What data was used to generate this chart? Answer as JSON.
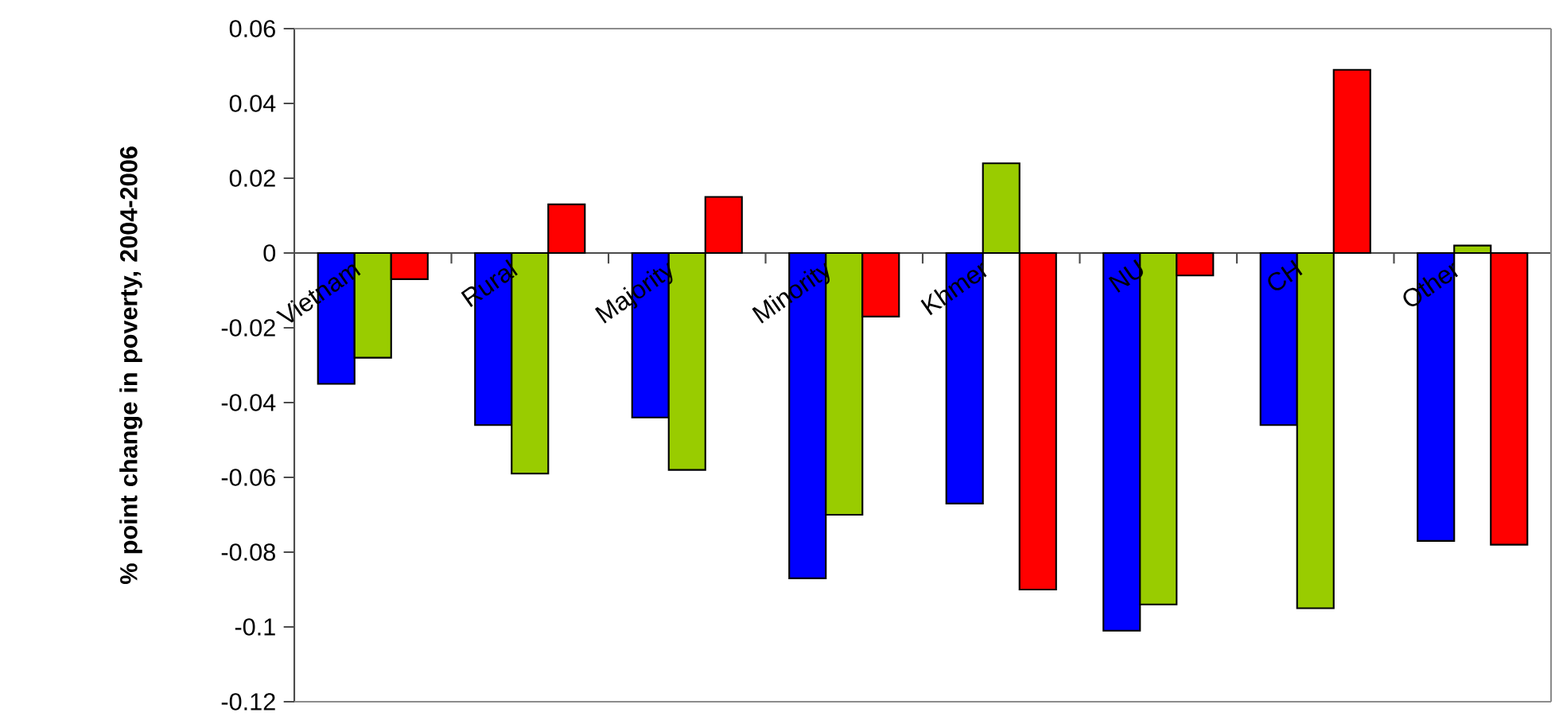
{
  "chart_data": {
    "type": "bar",
    "ylabel": "% point change in poverty, 2004-2006",
    "categories": [
      "Vietnam",
      "Rural",
      "Majority",
      "Minority",
      "Khmer",
      "NU",
      "CH",
      "Other"
    ],
    "series": [
      {
        "color": "#0000ff",
        "values": [
          -0.035,
          -0.046,
          -0.044,
          -0.087,
          -0.067,
          -0.101,
          -0.046,
          -0.077
        ]
      },
      {
        "color": "#99cc00",
        "values": [
          -0.028,
          -0.059,
          -0.058,
          -0.07,
          0.024,
          -0.094,
          -0.095,
          0.002
        ]
      },
      {
        "color": "#ff0000",
        "values": [
          -0.007,
          0.013,
          0.015,
          -0.017,
          -0.09,
          -0.006,
          0.049,
          -0.078
        ]
      }
    ],
    "ylim": [
      -0.12,
      0.06
    ],
    "yticks": [
      -0.12,
      -0.1,
      -0.08,
      -0.06,
      -0.04,
      -0.02,
      0,
      0.02,
      0.04,
      0.06
    ],
    "grid": false
  }
}
